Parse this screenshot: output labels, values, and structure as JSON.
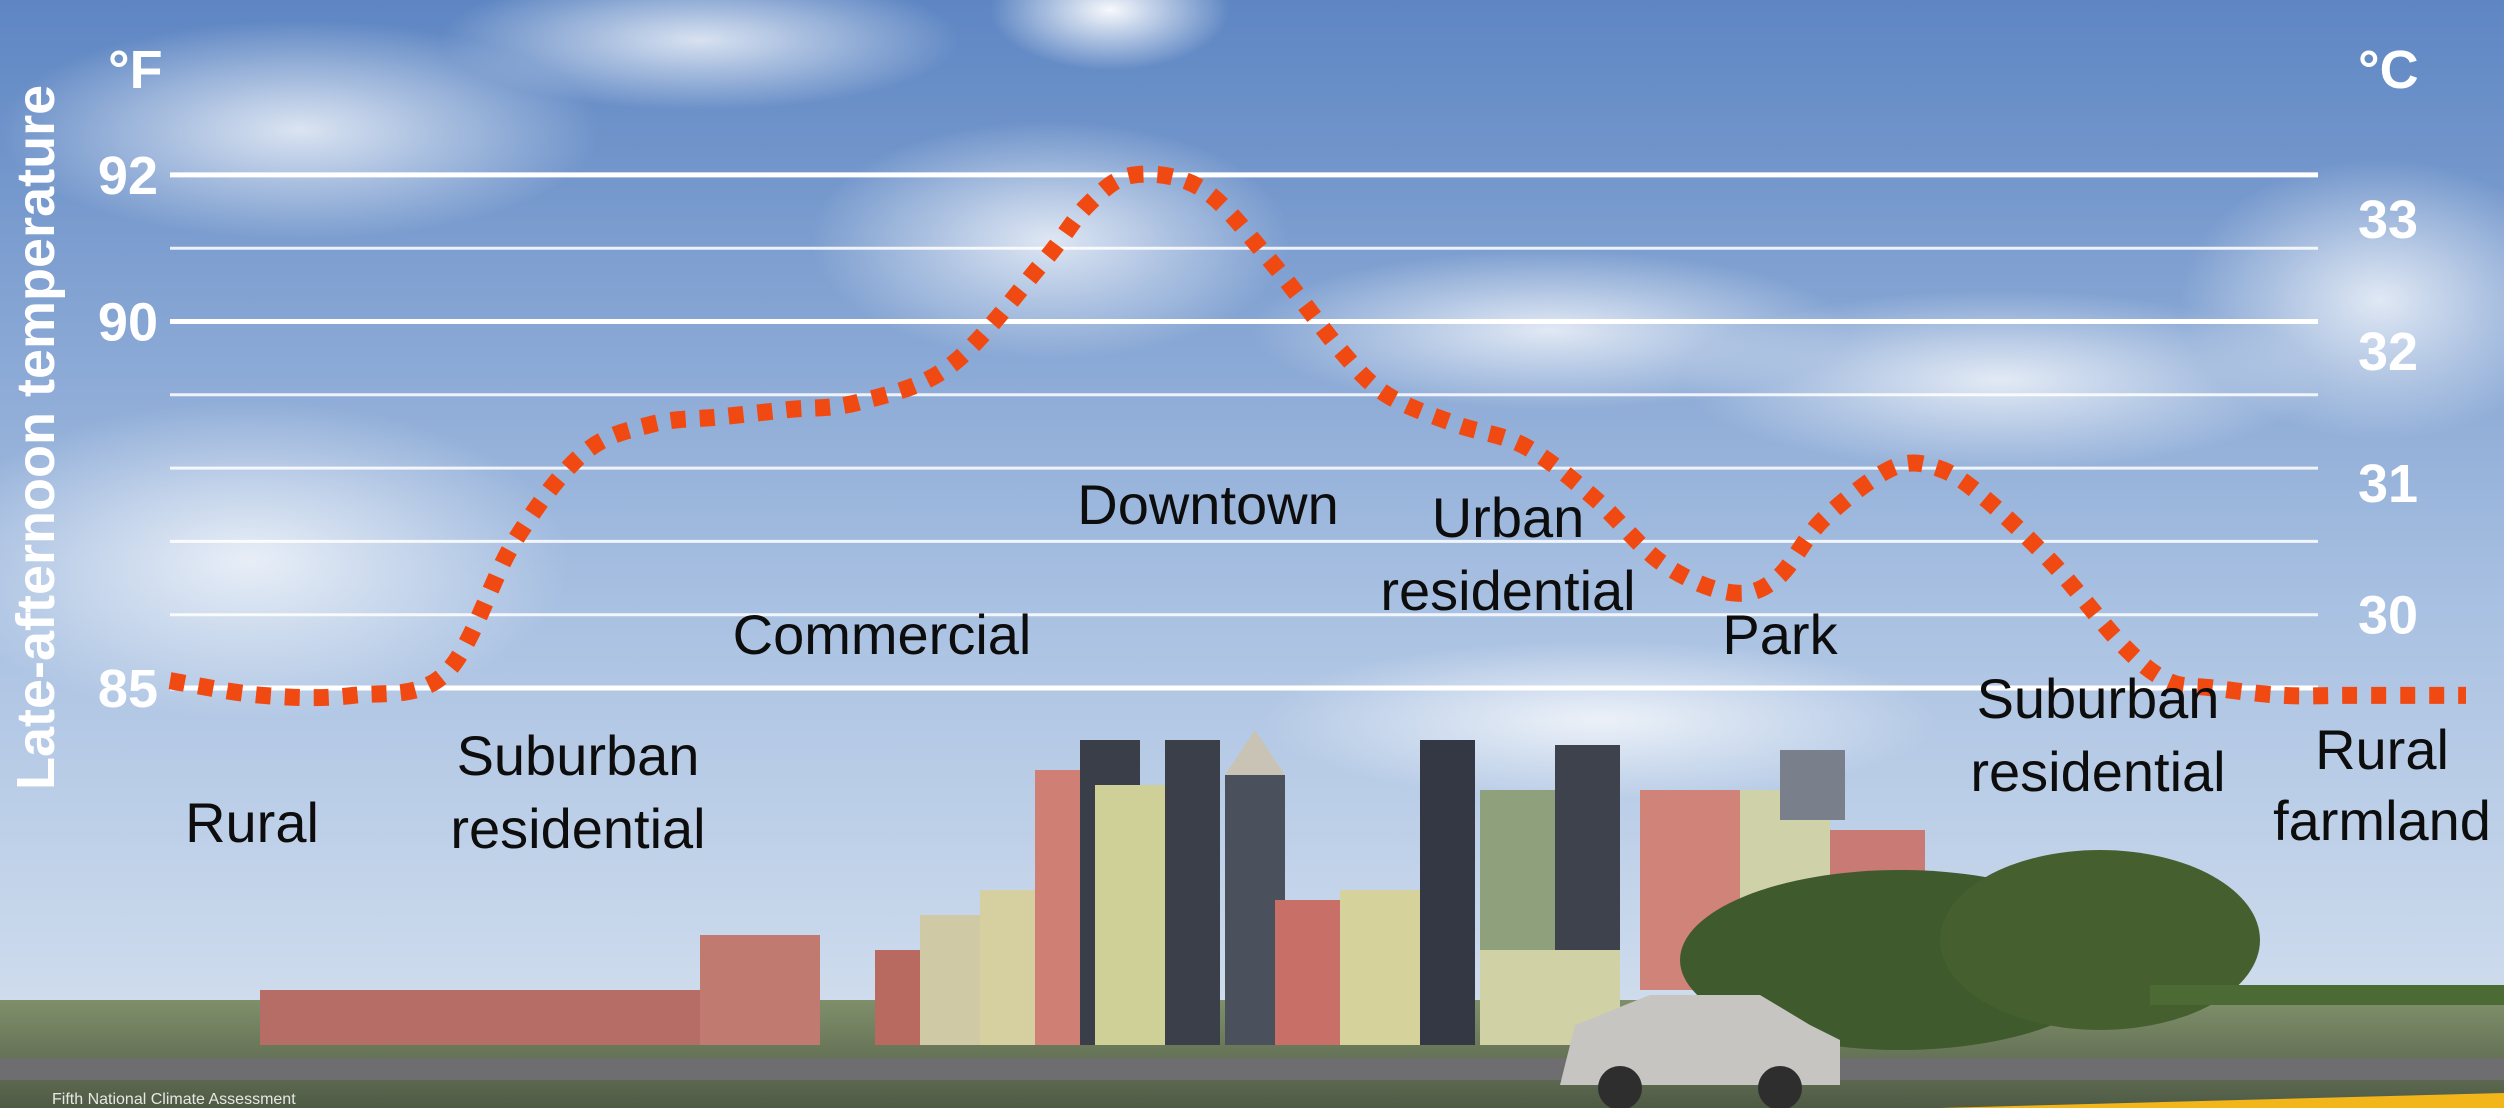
{
  "chart_data": {
    "type": "line",
    "title": "",
    "ylabel": "Late-afternoon temperature",
    "y_unit_left": "°F",
    "y_unit_right": "°C",
    "yticks_left": [
      85,
      90,
      92
    ],
    "yticks_right": [
      30,
      31,
      32,
      33
    ],
    "ylim": [
      85,
      93
    ],
    "xlim": [
      0,
      100
    ],
    "gridlines_F": [
      85,
      86,
      87,
      88,
      89,
      90,
      91,
      92
    ],
    "series": [
      {
        "color": "#f04a12",
        "style": "dotted",
        "x": [
          0,
          4,
          8,
          12,
          15,
          18,
          21,
          24,
          27,
          30,
          34,
          38,
          40,
          42,
          45,
          48,
          51,
          53,
          56,
          59,
          62,
          65,
          68,
          70,
          72,
          75,
          77,
          79,
          82,
          85,
          87,
          89,
          92,
          95,
          98,
          100
        ],
        "y": [
          85.1,
          84.9,
          84.9,
          85.2,
          87.0,
          88.2,
          88.6,
          88.7,
          88.8,
          88.9,
          89.4,
          90.8,
          91.6,
          92.0,
          91.8,
          90.8,
          89.6,
          89.0,
          88.6,
          88.3,
          87.6,
          86.7,
          86.3,
          86.5,
          87.3,
          88.0,
          88.0,
          87.6,
          86.7,
          85.6,
          85.1,
          85.0,
          84.9,
          84.9,
          84.9,
          84.9
        ]
      }
    ],
    "annotations": [
      {
        "text": "Rural",
        "x": 3
      },
      {
        "text": "Suburban residential",
        "x": 17
      },
      {
        "text": "Commercial",
        "x": 31
      },
      {
        "text": "Downtown",
        "x": 46
      },
      {
        "text": "Urban residential",
        "x": 59
      },
      {
        "text": "Park",
        "x": 72
      },
      {
        "text": "Suburban residential",
        "x": 84
      },
      {
        "text": "Rural farmland",
        "x": 97
      }
    ]
  },
  "credit": "Fifth National Climate Assessment",
  "colors": {
    "sky_top": "#5f86c2",
    "sky_bottom": "#c9d9ee",
    "line": "#f04a12",
    "grid": "#ffffff"
  }
}
